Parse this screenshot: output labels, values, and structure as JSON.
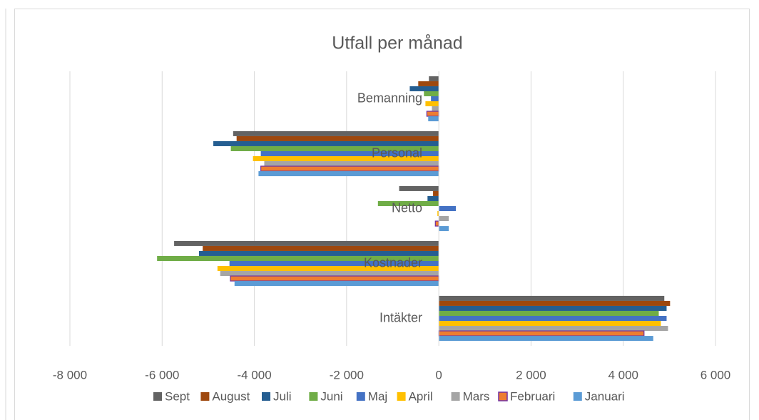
{
  "chart_data": {
    "type": "bar",
    "orientation": "horizontal",
    "title": "Utfall per månad",
    "categories": [
      "Bemanning",
      "Personal",
      "Netto",
      "Kostnader",
      "Intäkter"
    ],
    "series": [
      {
        "name": "Sept",
        "color": "#636363",
        "values": [
          -215,
          -4460,
          -860,
          -5740,
          4890
        ]
      },
      {
        "name": "August",
        "color": "#9e480e",
        "values": [
          -446,
          -4385,
          -125,
          -5120,
          5015
        ]
      },
      {
        "name": "Juli",
        "color": "#255e91",
        "values": [
          -630,
          -4890,
          -245,
          -5200,
          4940
        ]
      },
      {
        "name": "Juni",
        "color": "#70ad47",
        "values": [
          -323,
          -4510,
          -1320,
          -6110,
          4770
        ]
      },
      {
        "name": "Maj",
        "color": "#4472c4",
        "values": [
          -170,
          -3860,
          370,
          -4540,
          4940
        ]
      },
      {
        "name": "April",
        "color": "#ffc000",
        "values": [
          -290,
          -4030,
          -30,
          -4800,
          4815
        ]
      },
      {
        "name": "Mars",
        "color": "#a5a5a5",
        "values": [
          -150,
          -3785,
          215,
          -4740,
          4970
        ]
      },
      {
        "name": "Februari",
        "color": "#ed7d31",
        "values": [
          -260,
          -3860,
          -75,
          -4520,
          4450
        ]
      },
      {
        "name": "Januari",
        "color": "#5b9bd5",
        "values": [
          -230,
          -3910,
          215,
          -4430,
          4650
        ]
      }
    ],
    "xlim": [
      -8000,
      6000
    ],
    "xticks": [
      {
        "value": -8000,
        "label": "-8 000"
      },
      {
        "value": -6000,
        "label": "-6 000"
      },
      {
        "value": -4000,
        "label": "-4 000"
      },
      {
        "value": -2000,
        "label": "-2 000"
      },
      0,
      {
        "value": 2000,
        "label": "2 000"
      },
      {
        "value": 4000,
        "label": "4 000"
      },
      {
        "value": 6000,
        "label": "6 000"
      }
    ],
    "grid": true,
    "legend": "bottom"
  }
}
